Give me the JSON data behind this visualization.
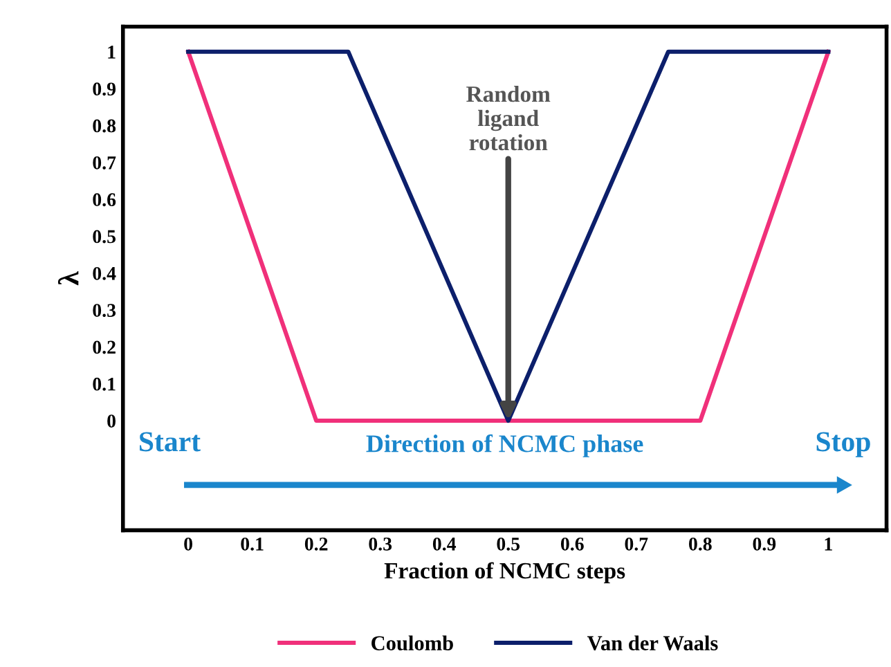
{
  "chart_data": {
    "type": "line",
    "xlabel": "Fraction of NCMC steps",
    "ylabel": "λ",
    "series": [
      {
        "name": "Coulomb",
        "color": "#f0307a",
        "x": [
          0,
          0.2,
          0.8,
          1
        ],
        "values": [
          1,
          0,
          0,
          1
        ]
      },
      {
        "name": "Van der Waals",
        "color": "#0c1f6b",
        "x": [
          0,
          0.25,
          0.5,
          0.75,
          1
        ],
        "values": [
          1,
          1,
          0,
          1,
          1
        ]
      }
    ],
    "xlim": [
      -0.102,
      1.091
    ],
    "ylim": [
      -0.297,
      1.068
    ],
    "xticks": [
      0,
      0.1,
      0.2,
      0.3,
      0.4,
      0.5,
      0.6,
      0.7,
      0.8,
      0.9,
      1
    ],
    "yticks": [
      0,
      0.1,
      0.2,
      0.3,
      0.4,
      0.5,
      0.6,
      0.7,
      0.8,
      0.9,
      1
    ],
    "annotations": [
      {
        "text": "Random\nligand\nrotation",
        "x": 0.5,
        "y": 0
      },
      "Start",
      "Direction of NCMC phase",
      "Stop"
    ],
    "legend": "bottom",
    "grid": false,
    "marker": "none",
    "line_style": "solid"
  }
}
